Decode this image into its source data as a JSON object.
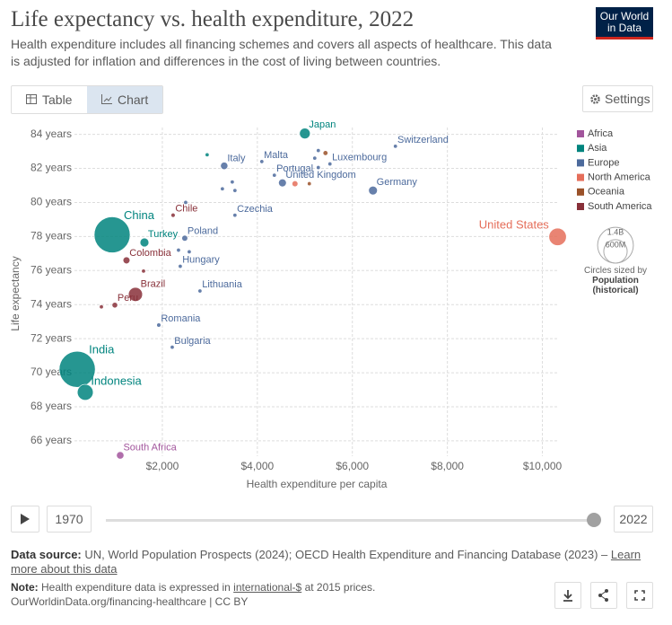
{
  "header": {
    "title": "Life expectancy vs. health expenditure, 2022",
    "subtitle": "Health expenditure includes all financing schemes and covers all aspects of healthcare. This data is adjusted for inflation and differences in the cost of living between countries.",
    "logo": [
      "Our World",
      "in Data"
    ]
  },
  "controls": {
    "tabs": [
      "Table",
      "Chart"
    ],
    "settings": "Settings"
  },
  "chart_data": {
    "type": "scatter",
    "x_label": "Health expenditure per capita",
    "y_label": "Life expectancy",
    "xlim": [
      150,
      10500
    ],
    "ylim": [
      65.1,
      84.4
    ],
    "xticks": [
      {
        "value": 2000,
        "label": "$2,000"
      },
      {
        "value": 4000,
        "label": "$4,000"
      },
      {
        "value": 6000,
        "label": "$6,000"
      },
      {
        "value": 8000,
        "label": "$8,000"
      },
      {
        "value": 10000,
        "label": "$10,000"
      }
    ],
    "yticks": [
      {
        "value": 66,
        "label": "66 years"
      },
      {
        "value": 68,
        "label": "68 years"
      },
      {
        "value": 70,
        "label": "70 years"
      },
      {
        "value": 72,
        "label": "72 years"
      },
      {
        "value": 74,
        "label": "74 years"
      },
      {
        "value": 76,
        "label": "76 years"
      },
      {
        "value": 78,
        "label": "78 years"
      },
      {
        "value": 80,
        "label": "80 years"
      },
      {
        "value": 82,
        "label": "82 years"
      },
      {
        "value": 84,
        "label": "84 years"
      }
    ],
    "grid": true,
    "series": [
      {
        "name": "Africa",
        "color": "#a2559c",
        "x": [
          1113
        ],
        "values": [
          65.15
        ],
        "size": [
          60
        ],
        "labels": [
          "South Africa"
        ]
      },
      {
        "name": "Asia",
        "color": "#00847e",
        "x": [
          5000,
          943,
          1623,
          208,
          377,
          2943
        ],
        "values": [
          84.05,
          78.1,
          77.65,
          70.2,
          68.85,
          82.8
        ],
        "size": [
          124,
          1410,
          85,
          1420,
          275,
          5
        ],
        "labels": [
          "Japan",
          "China",
          "Turkey",
          "India",
          "Indonesia",
          null
        ]
      },
      {
        "name": "Europe",
        "color": "#4c6a9c",
        "x": [
          6906,
          3302,
          4094,
          5528,
          4358,
          4528,
          6434,
          3528,
          2472,
          2377,
          2792,
          1925,
          2208,
          3264,
          3472,
          3528,
          2491,
          2340,
          2566,
          5283,
          5208,
          5283
        ],
        "values": [
          83.3,
          82.15,
          82.4,
          82.26,
          81.6,
          81.15,
          80.7,
          79.25,
          77.9,
          76.25,
          74.8,
          72.8,
          71.5,
          80.8,
          81.2,
          80.7,
          80.0,
          77.2,
          77.1,
          83.05,
          82.6,
          82.05
        ],
        "size": [
          9,
          59,
          0.5,
          0.6,
          10,
          67,
          84,
          10,
          38,
          10,
          3,
          19,
          7,
          10,
          5,
          2,
          5,
          4,
          5,
          6,
          17,
          11
        ],
        "labels": [
          "Switzerland",
          "Italy",
          "Malta",
          "Luxembourg",
          "Portugal",
          "United Kingdom",
          "Germany",
          "Czechia",
          "Poland",
          "Hungary",
          "Lithuania",
          "Romania",
          "Bulgaria",
          null,
          null,
          null,
          null,
          null,
          null,
          null,
          null,
          null
        ]
      },
      {
        "name": "North America",
        "color": "#e56e5a",
        "x": [
          10321,
          4792
        ],
        "values": [
          77.98,
          81.1
        ],
        "size": [
          333,
          38
        ],
        "labels": [
          "United States",
          null
        ]
      },
      {
        "name": "Oceania",
        "color": "#9a5129",
        "x": [
          5434,
          5094
        ],
        "values": [
          82.9,
          81.1
        ],
        "size": [
          26,
          5
        ],
        "labels": [
          null,
          null
        ]
      },
      {
        "name": "South America",
        "color": "#883039",
        "x": [
          2226,
          1245,
          1434,
          1000,
          1604,
          717
        ],
        "values": [
          79.25,
          76.6,
          74.6,
          73.97,
          75.97,
          73.87
        ],
        "size": [
          20,
          52,
          215,
          34,
          3,
          3
        ],
        "labels": [
          "Chile",
          "Colombia",
          "Brazil",
          "Peru",
          null,
          null
        ]
      }
    ],
    "size_legend": {
      "sizes": [
        {
          "value": 1400,
          "label": "1.4B"
        },
        {
          "value": 600,
          "label": "600M"
        }
      ],
      "title": "Circles sized by",
      "measure": "Population (historical)"
    }
  },
  "timeline": {
    "start": 1970,
    "end": 2022
  },
  "footer": {
    "source_label": "Data source:",
    "source": "UN, World Population Prospects (2024); OECD Health Expenditure and Financing Database (2023) –",
    "source_link": "Learn more about this data",
    "note_label": "Note:",
    "note": "Health expenditure data is expressed in",
    "note_link": "international-$",
    "note_end": "at 2015 prices.",
    "credit": "OurWorldinData.org/financing-healthcare | CC BY"
  }
}
